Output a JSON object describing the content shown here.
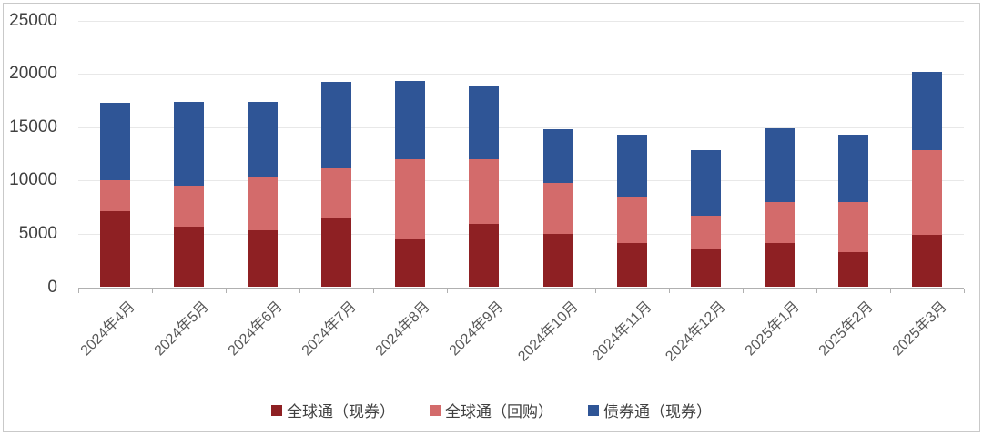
{
  "chart_data": {
    "type": "bar",
    "stacked": true,
    "title": "",
    "xlabel": "",
    "ylabel": "",
    "categories": [
      "2024年4月",
      "2024年5月",
      "2024年6月",
      "2024年7月",
      "2024年8月",
      "2024年9月",
      "2024年10月",
      "2024年11月",
      "2024年12月",
      "2025年1月",
      "2025年2月",
      "2025年3月"
    ],
    "series": [
      {
        "name": "全球通（现券）",
        "color": "#8E2023",
        "values": [
          7100,
          5700,
          5300,
          6400,
          4500,
          5900,
          5000,
          4100,
          3500,
          4100,
          3300,
          4900
        ]
      },
      {
        "name": "全球通（回购）",
        "color": "#D36B6B",
        "values": [
          2900,
          3800,
          5100,
          4700,
          7500,
          6100,
          4800,
          4400,
          3200,
          3900,
          4700,
          7900
        ]
      },
      {
        "name": "债券通（现券）",
        "color": "#2F5596",
        "values": [
          7300,
          7900,
          7000,
          8100,
          7300,
          6900,
          5000,
          5800,
          6100,
          6900,
          6300,
          7400
        ]
      }
    ],
    "totals": [
      17300,
      17400,
      17400,
      19200,
      19300,
      18900,
      14800,
      14300,
      12800,
      14900,
      14300,
      20200
    ],
    "ylim": [
      0,
      25000
    ],
    "y_ticks": [
      0,
      5000,
      10000,
      15000,
      20000,
      25000
    ],
    "grid": true,
    "legend_position": "bottom",
    "x_label_rotation": -45
  },
  "colors": {
    "background": "#FFFFFF",
    "border": "#C9C9C9",
    "gridline": "#E8E8E8",
    "axis_line": "#B0B0B0",
    "y_label_text": "#404040",
    "x_label_text": "#595959",
    "legend_text": "#404040"
  }
}
